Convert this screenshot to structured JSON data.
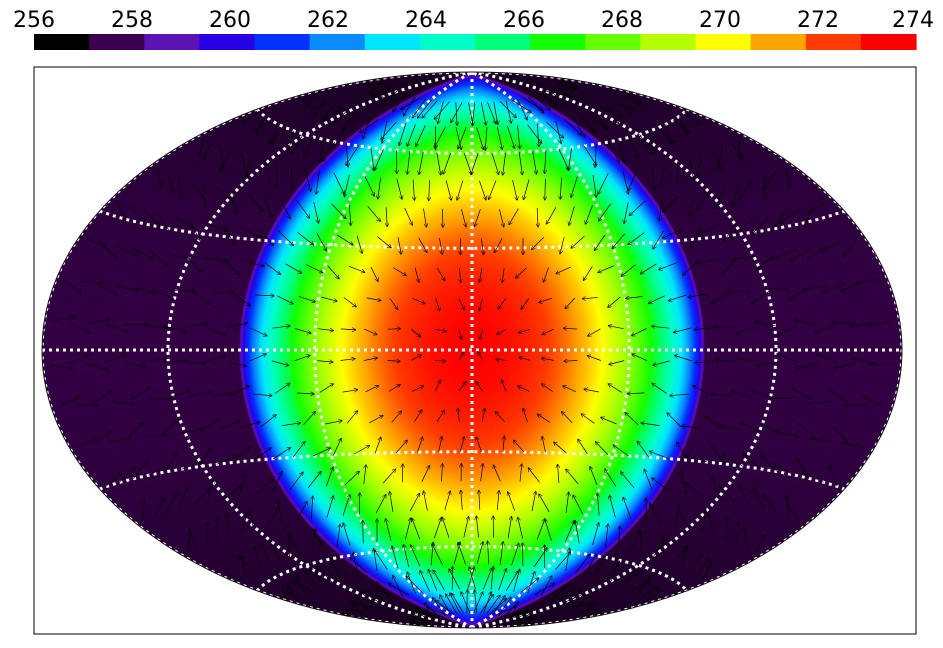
{
  "chart_data": {
    "type": "heatmap",
    "projection": "hammer-aitoff",
    "title": "",
    "xlabel": "",
    "ylabel": "",
    "colorbar": {
      "placement": "top",
      "range": [
        256,
        274
      ],
      "ticks": [
        256,
        258,
        260,
        262,
        264,
        266,
        268,
        270,
        272,
        274
      ],
      "tick_labels": [
        "256",
        "258",
        "260",
        "262",
        "264",
        "266",
        "268",
        "270",
        "272",
        "274"
      ],
      "color_steps": [
        "#000000",
        "#3c0050",
        "#5a14b4",
        "#2800e6",
        "#0032ff",
        "#0a8cff",
        "#00e6ff",
        "#00ffc8",
        "#00ff78",
        "#14ff00",
        "#64ff00",
        "#b4ff00",
        "#ffff00",
        "#ffa500",
        "#ff3c00",
        "#ff0000"
      ]
    },
    "field": {
      "description_of_values": "surface temperature field, peak at sub-stellar point (lon 0, lat 0)",
      "center": {
        "lon": 0,
        "lat": 0,
        "value": 274
      },
      "edge_value": 257,
      "limb_value": 256
    },
    "graticule": {
      "parallels_deg": [
        -60,
        -30,
        0,
        30,
        60
      ],
      "meridians_deg": [
        -180,
        -120,
        -60,
        0,
        60,
        120,
        180
      ],
      "color": "#ffffff",
      "style": "dotted"
    },
    "vectors": {
      "color": "#000000",
      "pattern": "convergent flow toward sub-stellar point (lon 0, lat 0)",
      "spacing_deg": 9
    },
    "grid": false
  }
}
